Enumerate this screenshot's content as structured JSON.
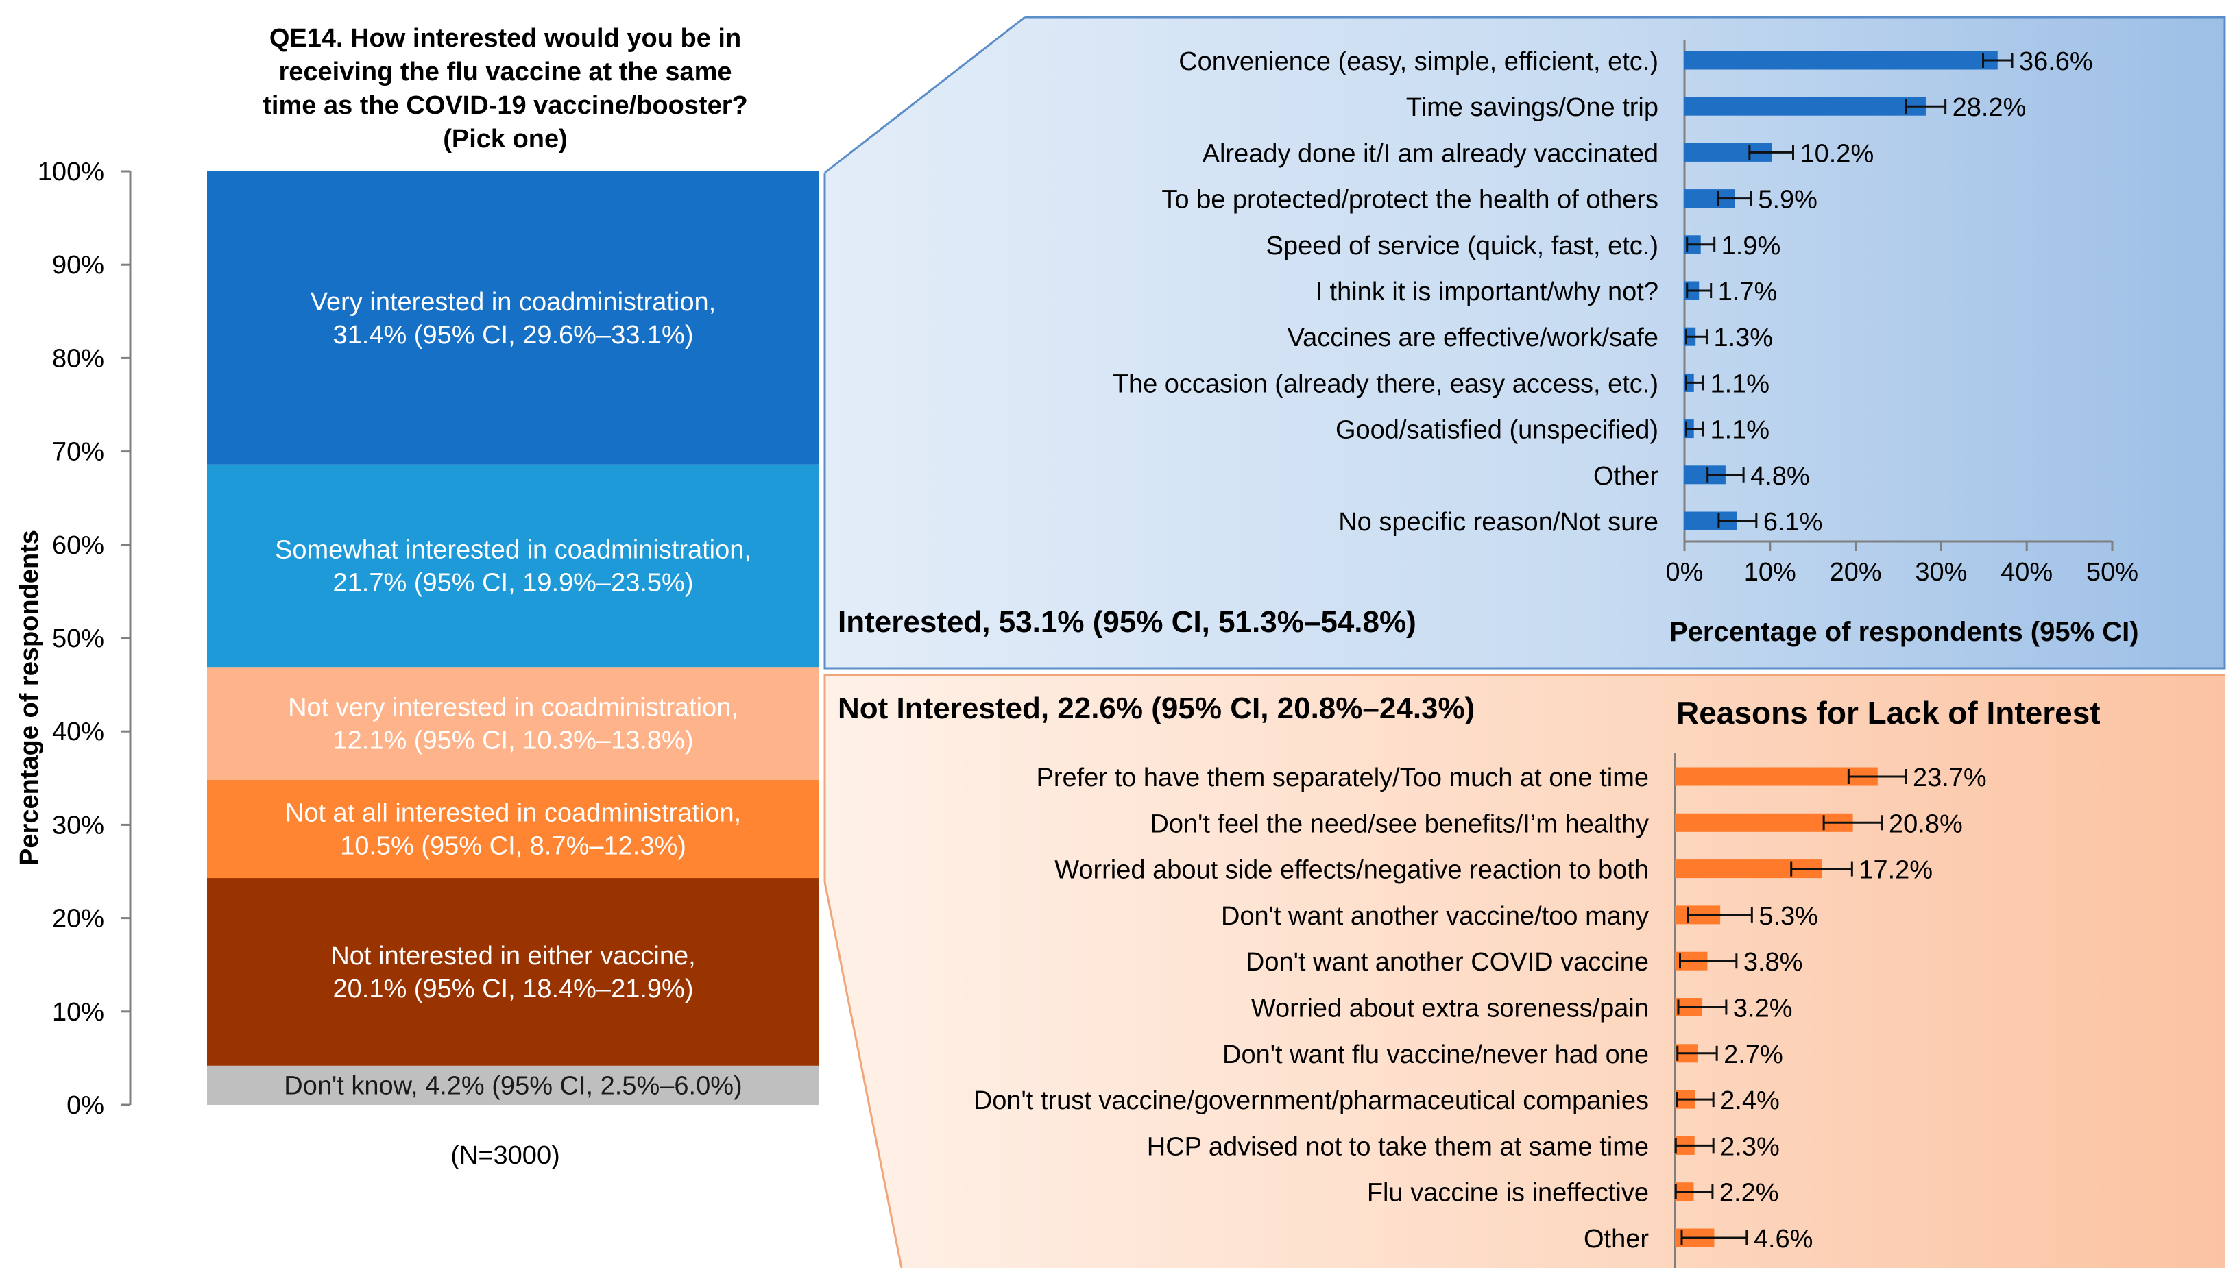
{
  "chart_data": [
    {
      "type": "stacked-bar",
      "title": "QE14. How interested would you be in receiving the flu vaccine at the same time as the COVID-19 vaccine/booster? (Pick one)",
      "title_lines": [
        "QE14. How interested would you be in",
        "receiving the flu vaccine at the same",
        "time as the COVID-19 vaccine/booster?",
        "(Pick one)"
      ],
      "ylabel": "Percentage of respondents",
      "ylim": [
        0,
        100
      ],
      "y_ticks": [
        "0%",
        "10%",
        "20%",
        "30%",
        "40%",
        "50%",
        "60%",
        "70%",
        "80%",
        "90%",
        "100%"
      ],
      "note": "(N=3000)",
      "segments": [
        {
          "label_lines": [
            "Don't know, 4.2% (95% CI, 2.5%–6.0%)"
          ],
          "value": 4.2,
          "color": "#bfbfbf",
          "text_color": "#1a1a1a"
        },
        {
          "label_lines": [
            "Not interested in either vaccine,",
            "20.1% (95% CI, 18.4%–21.9%)"
          ],
          "value": 20.1,
          "color": "#993300",
          "text_color": "#ffffff"
        },
        {
          "label_lines": [
            "Not at all interested in coadministration,",
            "10.5% (95% CI, 8.7%–12.3%)"
          ],
          "value": 10.5,
          "color": "#ff8533",
          "text_color": "#ffffff"
        },
        {
          "label_lines": [
            "Not very interested in coadministration,",
            "12.1% (95% CI, 10.3%–13.8%)"
          ],
          "value": 12.1,
          "color": "#ffb38a",
          "text_color": "#ffffff"
        },
        {
          "label_lines": [
            "Somewhat interested in coadministration,",
            "21.7% (95% CI, 19.9%–23.5%)"
          ],
          "value": 21.7,
          "color": "#1f9ad8",
          "text_color": "#ffffff"
        },
        {
          "label_lines": [
            "Very interested in coadministration,",
            "31.4% (95% CI, 29.6%–33.1%)"
          ],
          "value": 31.4,
          "color": "#1670c6",
          "text_color": "#ffffff"
        }
      ]
    },
    {
      "type": "bar",
      "orientation": "horizontal",
      "heading": "Interested, 53.1% (95% CI, 51.3%–54.8%)",
      "xlabel": "Percentage of respondents (95% CI)",
      "xlim": [
        0,
        50
      ],
      "x_ticks": [
        "0%",
        "10%",
        "20%",
        "30%",
        "40%",
        "50%"
      ],
      "color": "#1f6fc5",
      "categories": [
        "Convenience (easy, simple, efficient, etc.)",
        "Time savings/One trip",
        "Already done it/I am already vaccinated",
        "To be protected/protect the health of others",
        "Speed of service (quick, fast, etc.)",
        "I think it is important/why  not?",
        "Vaccines are effective/work/safe",
        "The occasion (already there, easy access, etc.)",
        "Good/satisfied (unspecified)",
        "Other",
        "No specific reason/Not sure"
      ],
      "values": [
        36.6,
        28.2,
        10.2,
        5.9,
        1.9,
        1.7,
        1.3,
        1.1,
        1.1,
        4.8,
        6.1
      ],
      "value_labels": [
        "36.6%",
        "28.2%",
        "10.2%",
        "5.9%",
        "1.9%",
        "1.7%",
        "1.3%",
        "1.1%",
        "1.1%",
        "4.8%",
        "6.1%"
      ],
      "ci_low": [
        34.9,
        25.9,
        7.6,
        3.9,
        0.3,
        0.3,
        0.2,
        0.2,
        0.2,
        2.7,
        4.0
      ],
      "ci_high": [
        38.3,
        30.5,
        12.7,
        7.8,
        3.5,
        3.1,
        2.6,
        2.2,
        2.2,
        6.9,
        8.4
      ]
    },
    {
      "type": "bar",
      "orientation": "horizontal",
      "heading": "Not Interested, 22.6% (95% CI, 20.8%–24.3%)",
      "title": "Reasons for Lack of Interest",
      "xlim": [
        0,
        50
      ],
      "color": "#ff7a2b",
      "categories": [
        "Prefer to have them separately/Too much at one time",
        "Don't feel the need/see benefits/I’m healthy",
        "Worried about side effects/negative  reaction to both",
        "Don't want another vaccine/too many",
        "Don't want another  COVID vaccine",
        "Worried about extra soreness/pain",
        "Don't want flu vaccine/never had one",
        "Don't trust  vaccine/government/pharmaceutical  companies",
        "HCP advised not to take them at same time",
        "Flu vaccine is ineffective",
        "Other"
      ],
      "values": [
        23.7,
        20.8,
        17.2,
        5.3,
        3.8,
        3.2,
        2.7,
        2.4,
        2.3,
        2.2,
        4.6
      ],
      "value_labels": [
        "23.7%",
        "20.8%",
        "17.2%",
        "5.3%",
        "3.8%",
        "3.2%",
        "2.7%",
        "2.4%",
        "2.3%",
        "2.2%",
        "4.6%"
      ],
      "ci_low": [
        20.3,
        17.4,
        13.6,
        1.5,
        0.6,
        0.4,
        0.3,
        0.2,
        0.1,
        0.1,
        0.8
      ],
      "ci_high": [
        27.0,
        24.2,
        20.7,
        9.0,
        7.2,
        6.0,
        4.9,
        4.5,
        4.5,
        4.4,
        8.4
      ]
    }
  ]
}
